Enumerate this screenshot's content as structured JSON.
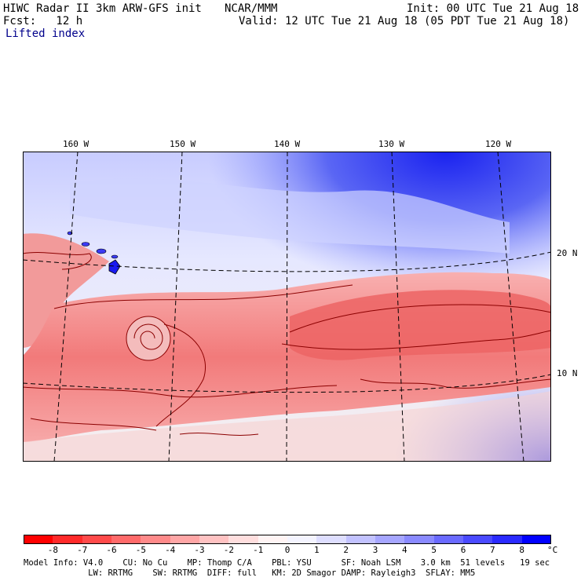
{
  "header": {
    "left1": "HIWC Radar II 3km ARW-GFS init",
    "center1": "NCAR/MMM",
    "right1": "Init: 00 UTC Tue 21 Aug 18",
    "left2": "Fcst:   12 h",
    "right2": "Valid: 12 UTC Tue 21 Aug 18 (05 PDT Tue 21 Aug 18)",
    "field": "Lifted index"
  },
  "map": {
    "lon_labels": [
      "160 W",
      "150 W",
      "140 W",
      "130 W",
      "120 W"
    ],
    "lat_labels": [
      "20 N",
      "10 N"
    ]
  },
  "colorbar": {
    "ticks": [
      "-8",
      "-7",
      "-6",
      "-5",
      "-4",
      "-3",
      "-2",
      "-1",
      "0",
      "1",
      "2",
      "3",
      "4",
      "5",
      "6",
      "7",
      "8"
    ],
    "unit": "°C",
    "colors": [
      "#ff0000",
      "#ff2a2a",
      "#ff4a4a",
      "#ff6a6a",
      "#ff8a8a",
      "#ffa6a6",
      "#ffc2c2",
      "#ffdede",
      "#fff4f4",
      "#f4f4ff",
      "#dedeff",
      "#c2c2ff",
      "#a6a6ff",
      "#8a8aff",
      "#6a6aff",
      "#4a4aff",
      "#2a2aff",
      "#0000ff"
    ]
  },
  "footer": {
    "line1": "Model Info: V4.0    CU: No Cu    MP: Thomp C/A    PBL: YSU      SF: Noah LSM    3.0 km  51 levels   19 sec",
    "line2": "             LW: RRTMG    SW: RRTMG  DIFF: full   KM: 2D Smagor DAMP: Rayleigh3  SFLAY: MM5"
  }
}
